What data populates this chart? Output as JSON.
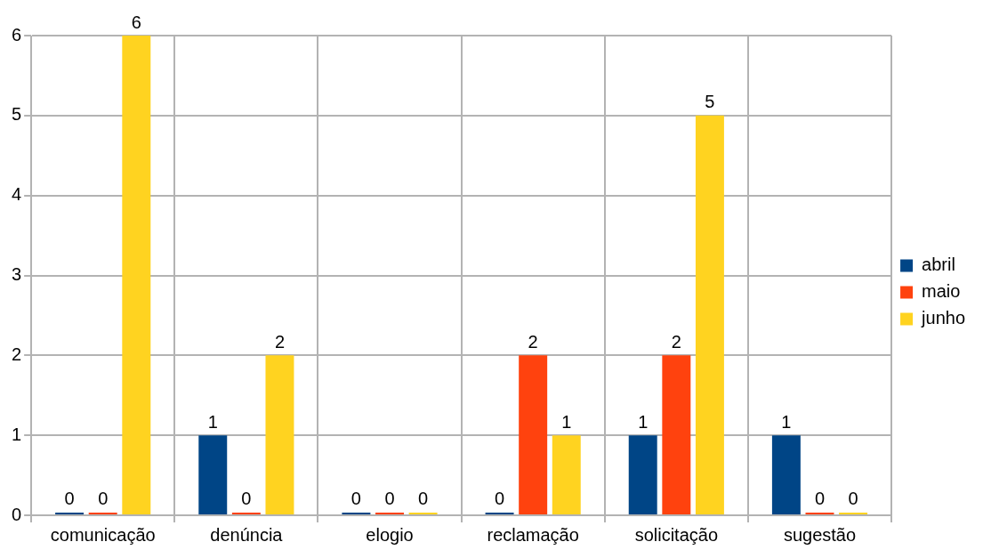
{
  "chart_data": {
    "type": "bar",
    "categories": [
      "comunicação",
      "denúncia",
      "elogio",
      "reclamação",
      "solicitação",
      "sugestão"
    ],
    "series": [
      {
        "name": "abril",
        "color": "#004586",
        "values": [
          0,
          1,
          0,
          0,
          1,
          1
        ]
      },
      {
        "name": "maio",
        "color": "#ff420e",
        "values": [
          0,
          0,
          0,
          2,
          2,
          0
        ]
      },
      {
        "name": "junho",
        "color": "#ffd320",
        "values": [
          6,
          2,
          0,
          1,
          5,
          0
        ]
      }
    ],
    "ylim": [
      0,
      6
    ],
    "yticks": [
      0,
      1,
      2,
      3,
      4,
      5,
      6
    ],
    "grid": true,
    "legend": "right",
    "data_labels": true
  }
}
